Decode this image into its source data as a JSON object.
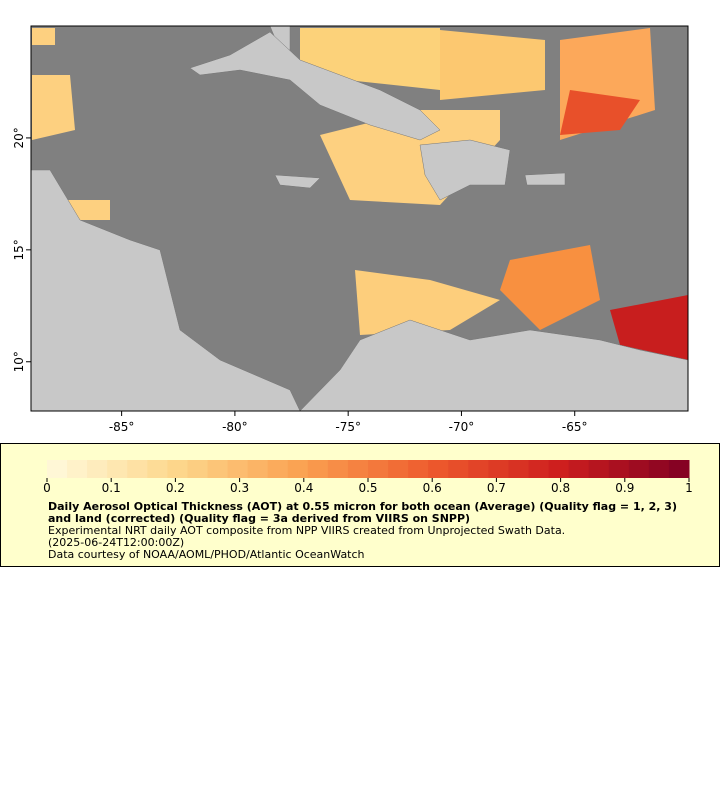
{
  "map": {
    "xlim": [
      -89,
      -60
    ],
    "ylim": [
      7.8,
      25
    ],
    "xticks": [
      {
        "value": -85,
        "label": "-85°"
      },
      {
        "value": -80,
        "label": "-80°"
      },
      {
        "value": -75,
        "label": "-75°"
      },
      {
        "value": -70,
        "label": "-70°"
      },
      {
        "value": -65,
        "label": "-65°"
      }
    ],
    "yticks": [
      {
        "value": 10,
        "label": "10°"
      },
      {
        "value": 15,
        "label": "15°"
      },
      {
        "value": 20,
        "label": "20°"
      }
    ]
  },
  "colorbar": {
    "range": [
      0,
      1
    ],
    "ticks": [
      0,
      0.1,
      0.2,
      0.3,
      0.4,
      0.5,
      0.6,
      0.7,
      0.8,
      0.9,
      1
    ]
  },
  "caption": {
    "title": "Daily Aerosol Optical Thickness (AOT) at 0.55 micron for both ocean (Average) (Quality flag = 1, 2, 3) and land (corrected) (Quality flag = 3a derived from VIIRS on SNPP)",
    "lines": [
      "Experimental NRT daily AOT composite from NPP VIIRS created from Unprojected Swath Data.",
      "(2025-06-24T12:00:00Z)",
      "Data courtesy of NOAA/AOML/PHOD/Atlantic OceanWatch"
    ]
  }
}
